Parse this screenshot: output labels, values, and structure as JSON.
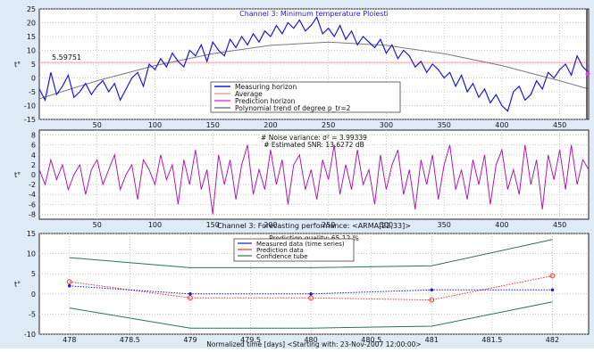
{
  "chart_data": [
    {
      "type": "line",
      "title": "Channel 3: Minimum temperature Ploiesti",
      "ylabel": "t°",
      "xlim": [
        0,
        475
      ],
      "ylim": [
        -15,
        25
      ],
      "x_ticks": [
        50,
        100,
        150,
        200,
        250,
        300,
        350,
        400,
        450
      ],
      "y_ticks": [
        -15,
        -10,
        -5,
        0,
        5,
        10,
        15,
        20,
        25
      ],
      "grid": true,
      "legend_position": "center-right",
      "average_label": "5.59751",
      "average_value": 5.59751,
      "series": [
        {
          "name": "Measuring horizon",
          "color": "#1b1bd0",
          "x": [
            0,
            5,
            10,
            15,
            20,
            25,
            30,
            35,
            40,
            45,
            50,
            55,
            60,
            65,
            70,
            75,
            80,
            85,
            90,
            95,
            100,
            105,
            110,
            115,
            120,
            125,
            130,
            135,
            140,
            145,
            150,
            155,
            160,
            165,
            170,
            175,
            180,
            185,
            190,
            195,
            200,
            205,
            210,
            215,
            220,
            225,
            230,
            235,
            240,
            245,
            250,
            255,
            260,
            265,
            270,
            275,
            280,
            285,
            290,
            295,
            300,
            305,
            310,
            315,
            320,
            325,
            330,
            335,
            340,
            345,
            350,
            355,
            360,
            365,
            370,
            375,
            380,
            385,
            390,
            395,
            400,
            405,
            410,
            415,
            420,
            425,
            430,
            435,
            440,
            445,
            450,
            455,
            460,
            465,
            470,
            475
          ],
          "y": [
            -4,
            -8,
            2,
            -6,
            -3,
            1,
            -7,
            -5,
            -2,
            -6,
            -3,
            -1,
            -5,
            -2,
            -8,
            -4,
            0,
            2,
            -3,
            5,
            3,
            7,
            4,
            9,
            6,
            4,
            10,
            8,
            12,
            6,
            13,
            10,
            8,
            14,
            11,
            15,
            12,
            16,
            13,
            17,
            15,
            19,
            16,
            20,
            18,
            21,
            17,
            19,
            22,
            16,
            18,
            15,
            19,
            14,
            17,
            12,
            15,
            13,
            11,
            14,
            9,
            12,
            7,
            10,
            8,
            4,
            6,
            2,
            5,
            3,
            0,
            2,
            -3,
            1,
            -5,
            -2,
            -7,
            -4,
            -9,
            -6,
            -10,
            -12,
            -5,
            -3,
            -8,
            -6,
            -1,
            -4,
            2,
            0,
            3,
            5,
            1,
            8,
            4,
            2
          ]
        },
        {
          "name": "Average",
          "color": "#ff9aa0"
        },
        {
          "name": "Prediction horizon",
          "color": "#e040e0"
        },
        {
          "name": "Polynomial trend of degree p_tr=2",
          "color": "#7a7a7a",
          "x": [
            0,
            50,
            100,
            150,
            200,
            250,
            300,
            350,
            400,
            450,
            475
          ],
          "y": [
            -7.5,
            -1,
            4.5,
            8.8,
            11.8,
            13,
            11.8,
            8.8,
            4.5,
            -1,
            -4
          ]
        }
      ]
    },
    {
      "type": "line",
      "ylabel": "t°",
      "xlim": [
        0,
        475
      ],
      "ylim": [
        -9,
        9
      ],
      "x_ticks": [
        50,
        100,
        150,
        200,
        250,
        300,
        350,
        400,
        450
      ],
      "y_ticks": [
        -8,
        -6,
        -4,
        -2,
        0,
        2,
        4,
        6,
        8
      ],
      "grid": true,
      "annotations": [
        "# Noise variance: σ² = 3.99339",
        "# Estimated SNR: 13.6272 dB"
      ],
      "series": [
        {
          "name": "",
          "color": "#b01ab0",
          "x": [
            0,
            5,
            10,
            15,
            20,
            25,
            30,
            35,
            40,
            45,
            50,
            55,
            60,
            65,
            70,
            75,
            80,
            85,
            90,
            95,
            100,
            105,
            110,
            115,
            120,
            125,
            130,
            135,
            140,
            145,
            150,
            155,
            160,
            165,
            170,
            175,
            180,
            185,
            190,
            195,
            200,
            205,
            210,
            215,
            220,
            225,
            230,
            235,
            240,
            245,
            250,
            255,
            260,
            265,
            270,
            275,
            280,
            285,
            290,
            295,
            300,
            305,
            310,
            315,
            320,
            325,
            330,
            335,
            340,
            345,
            350,
            355,
            360,
            365,
            370,
            375,
            380,
            385,
            390,
            395,
            400,
            405,
            410,
            415,
            420,
            425,
            430,
            435,
            440,
            445,
            450,
            455,
            460,
            465,
            470,
            475
          ],
          "y": [
            1,
            -2,
            3,
            -1,
            2,
            -3,
            0,
            2,
            -4,
            1,
            3,
            -2,
            1,
            4,
            -3,
            0,
            2,
            -5,
            3,
            1,
            -2,
            4,
            -1,
            2,
            -6,
            3,
            -2,
            5,
            -3,
            1,
            -8,
            4,
            -2,
            3,
            -5,
            2,
            6,
            -4,
            1,
            -3,
            5,
            -2,
            3,
            -6,
            2,
            4,
            -3,
            1,
            -5,
            3,
            -1,
            6,
            -4,
            2,
            -3,
            5,
            -2,
            1,
            -6,
            4,
            -3,
            2,
            5,
            -4,
            1,
            -7,
            3,
            -2,
            4,
            -5,
            2,
            6,
            -3,
            1,
            -5,
            3,
            -2,
            4,
            -6,
            2,
            5,
            -3,
            1,
            -4,
            6,
            -2,
            3,
            -7,
            4,
            -1,
            5,
            -3,
            6,
            -2,
            3,
            1
          ]
        }
      ]
    },
    {
      "type": "line",
      "title": "Channel 3: Forecasting performance: <ARMA[22,33]>",
      "subtitle": "Prediction quality: 65.12 %",
      "xlabel": "Normalized time [days] <Starting with: 23-Nov-2007 12:00:00>",
      "ylabel": "t°",
      "xlim": [
        477.75,
        482.3
      ],
      "ylim": [
        -10,
        15
      ],
      "x_ticks": [
        478,
        478.5,
        479,
        479.5,
        480,
        480.5,
        481,
        481.5,
        482
      ],
      "y_ticks": [
        -10,
        -5,
        0,
        5,
        10,
        15
      ],
      "grid": true,
      "legend_position": "top-center",
      "series": [
        {
          "name": "Measured data (time series)",
          "color": "#1b1bd0",
          "x": [
            478,
            479,
            480,
            481,
            482
          ],
          "y": [
            2,
            0,
            0,
            1,
            1
          ]
        },
        {
          "name": "Prediction data",
          "color": "#ff3030",
          "x": [
            478,
            479,
            480,
            481,
            482
          ],
          "y": [
            3,
            -1,
            -1,
            -1.5,
            4.5
          ]
        },
        {
          "name": "Confidence tube",
          "color": "#2f6f5f",
          "x": [
            478,
            479,
            480,
            481,
            482
          ],
          "upper": [
            9,
            6.5,
            6.5,
            7,
            13.5
          ],
          "lower": [
            -3.5,
            -8.5,
            -8.5,
            -8,
            -2
          ]
        }
      ]
    }
  ]
}
